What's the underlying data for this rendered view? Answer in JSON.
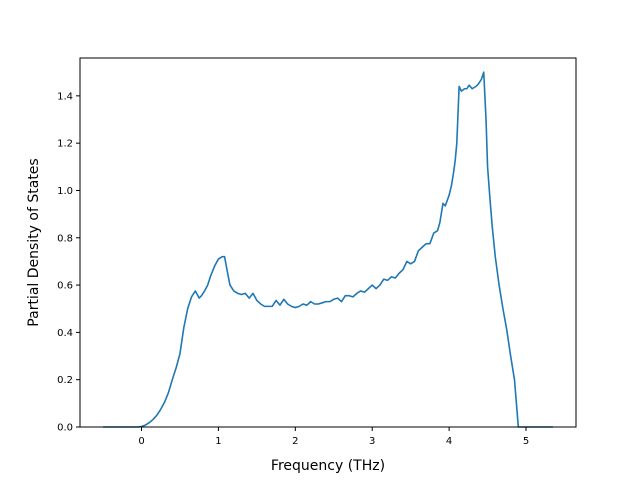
{
  "chart_data": {
    "type": "line",
    "title": "",
    "xlabel": "Frequency (THz)",
    "ylabel": "Partial Density of States",
    "xlim": [
      -0.8,
      5.65
    ],
    "ylim": [
      0.0,
      1.56
    ],
    "xticks": [
      0,
      1,
      2,
      3,
      4,
      5
    ],
    "yticks": [
      0.0,
      0.2,
      0.4,
      0.6,
      0.8,
      1.0,
      1.2,
      1.4
    ],
    "xtick_labels": [
      "0",
      "1",
      "2",
      "3",
      "4",
      "5"
    ],
    "ytick_labels": [
      "0.0",
      "0.2",
      "0.4",
      "0.6",
      "0.8",
      "1.0",
      "1.2",
      "1.4"
    ],
    "grid": false,
    "line_color": "#1f77b4",
    "series": [
      {
        "x": [
          -0.5,
          -0.05,
          0.0,
          0.05,
          0.1,
          0.15,
          0.2,
          0.25,
          0.3,
          0.35,
          0.4,
          0.45,
          0.5,
          0.55,
          0.6,
          0.65,
          0.7,
          0.75,
          0.78,
          0.82,
          0.86,
          0.9,
          0.95,
          1.0,
          1.05,
          1.08,
          1.12,
          1.15,
          1.2,
          1.25,
          1.3,
          1.35,
          1.4,
          1.45,
          1.5,
          1.55,
          1.6,
          1.65,
          1.7,
          1.75,
          1.8,
          1.85,
          1.9,
          1.95,
          2.0,
          2.05,
          2.1,
          2.15,
          2.2,
          2.25,
          2.3,
          2.35,
          2.4,
          2.45,
          2.5,
          2.55,
          2.6,
          2.65,
          2.7,
          2.75,
          2.8,
          2.85,
          2.9,
          2.95,
          3.0,
          3.05,
          3.1,
          3.15,
          3.2,
          3.25,
          3.3,
          3.35,
          3.4,
          3.45,
          3.5,
          3.55,
          3.6,
          3.65,
          3.7,
          3.75,
          3.8,
          3.85,
          3.88,
          3.92,
          3.95,
          4.0,
          4.03,
          4.06,
          4.08,
          4.1,
          4.13,
          4.16,
          4.2,
          4.23,
          4.26,
          4.3,
          4.35,
          4.38,
          4.4,
          4.42,
          4.45,
          4.48,
          4.5,
          4.53,
          4.56,
          4.6,
          4.65,
          4.7,
          4.75,
          4.8,
          4.85,
          4.9,
          5.0,
          5.1,
          5.2,
          5.35
        ],
        "y": [
          0.0,
          0.0,
          0.002,
          0.008,
          0.018,
          0.032,
          0.05,
          0.075,
          0.105,
          0.145,
          0.2,
          0.25,
          0.31,
          0.42,
          0.5,
          0.55,
          0.575,
          0.545,
          0.555,
          0.575,
          0.6,
          0.64,
          0.68,
          0.71,
          0.72,
          0.72,
          0.65,
          0.6,
          0.575,
          0.565,
          0.56,
          0.565,
          0.545,
          0.565,
          0.535,
          0.52,
          0.51,
          0.51,
          0.51,
          0.535,
          0.515,
          0.54,
          0.52,
          0.51,
          0.505,
          0.51,
          0.52,
          0.515,
          0.53,
          0.52,
          0.52,
          0.525,
          0.53,
          0.53,
          0.54,
          0.545,
          0.53,
          0.555,
          0.555,
          0.55,
          0.565,
          0.575,
          0.57,
          0.585,
          0.6,
          0.585,
          0.6,
          0.625,
          0.62,
          0.635,
          0.63,
          0.65,
          0.665,
          0.7,
          0.69,
          0.7,
          0.745,
          0.76,
          0.775,
          0.775,
          0.82,
          0.83,
          0.865,
          0.945,
          0.935,
          0.98,
          1.02,
          1.08,
          1.13,
          1.2,
          1.44,
          1.42,
          1.43,
          1.43,
          1.445,
          1.43,
          1.44,
          1.45,
          1.46,
          1.47,
          1.5,
          1.3,
          1.1,
          0.97,
          0.85,
          0.72,
          0.6,
          0.5,
          0.41,
          0.3,
          0.2,
          0.0,
          0.0,
          0.0,
          0.0,
          0.0
        ]
      }
    ]
  }
}
